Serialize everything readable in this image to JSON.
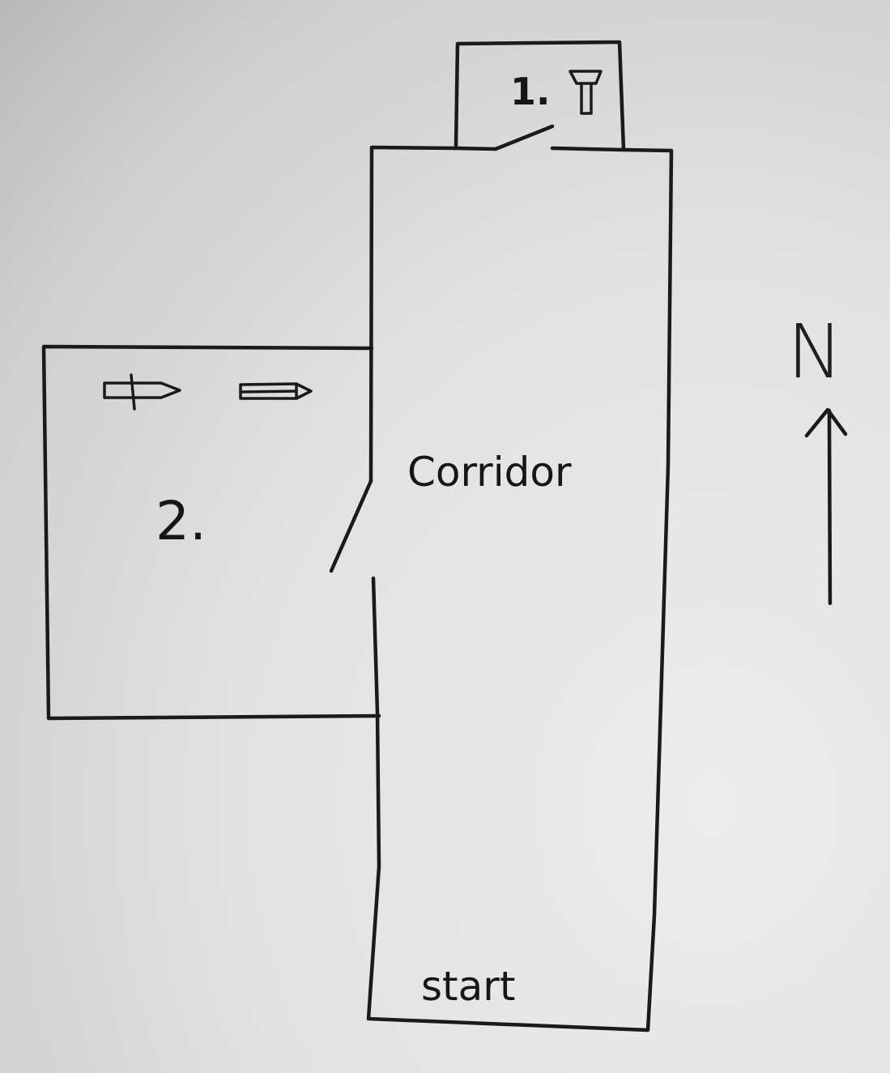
{
  "rooms": {
    "room1": {
      "label": "1.",
      "item_icon": "trophy-icon"
    },
    "room2": {
      "label": "2.",
      "item_icons": [
        "sword-icon",
        "pencil-icon"
      ]
    },
    "corridor": {
      "label": "Corridor",
      "start_label": "start"
    }
  },
  "compass": {
    "label": "N",
    "arrow_icon": "arrow-up-icon"
  },
  "colors": {
    "ink": "#1a1a1a",
    "board": "#e3e3e3"
  }
}
